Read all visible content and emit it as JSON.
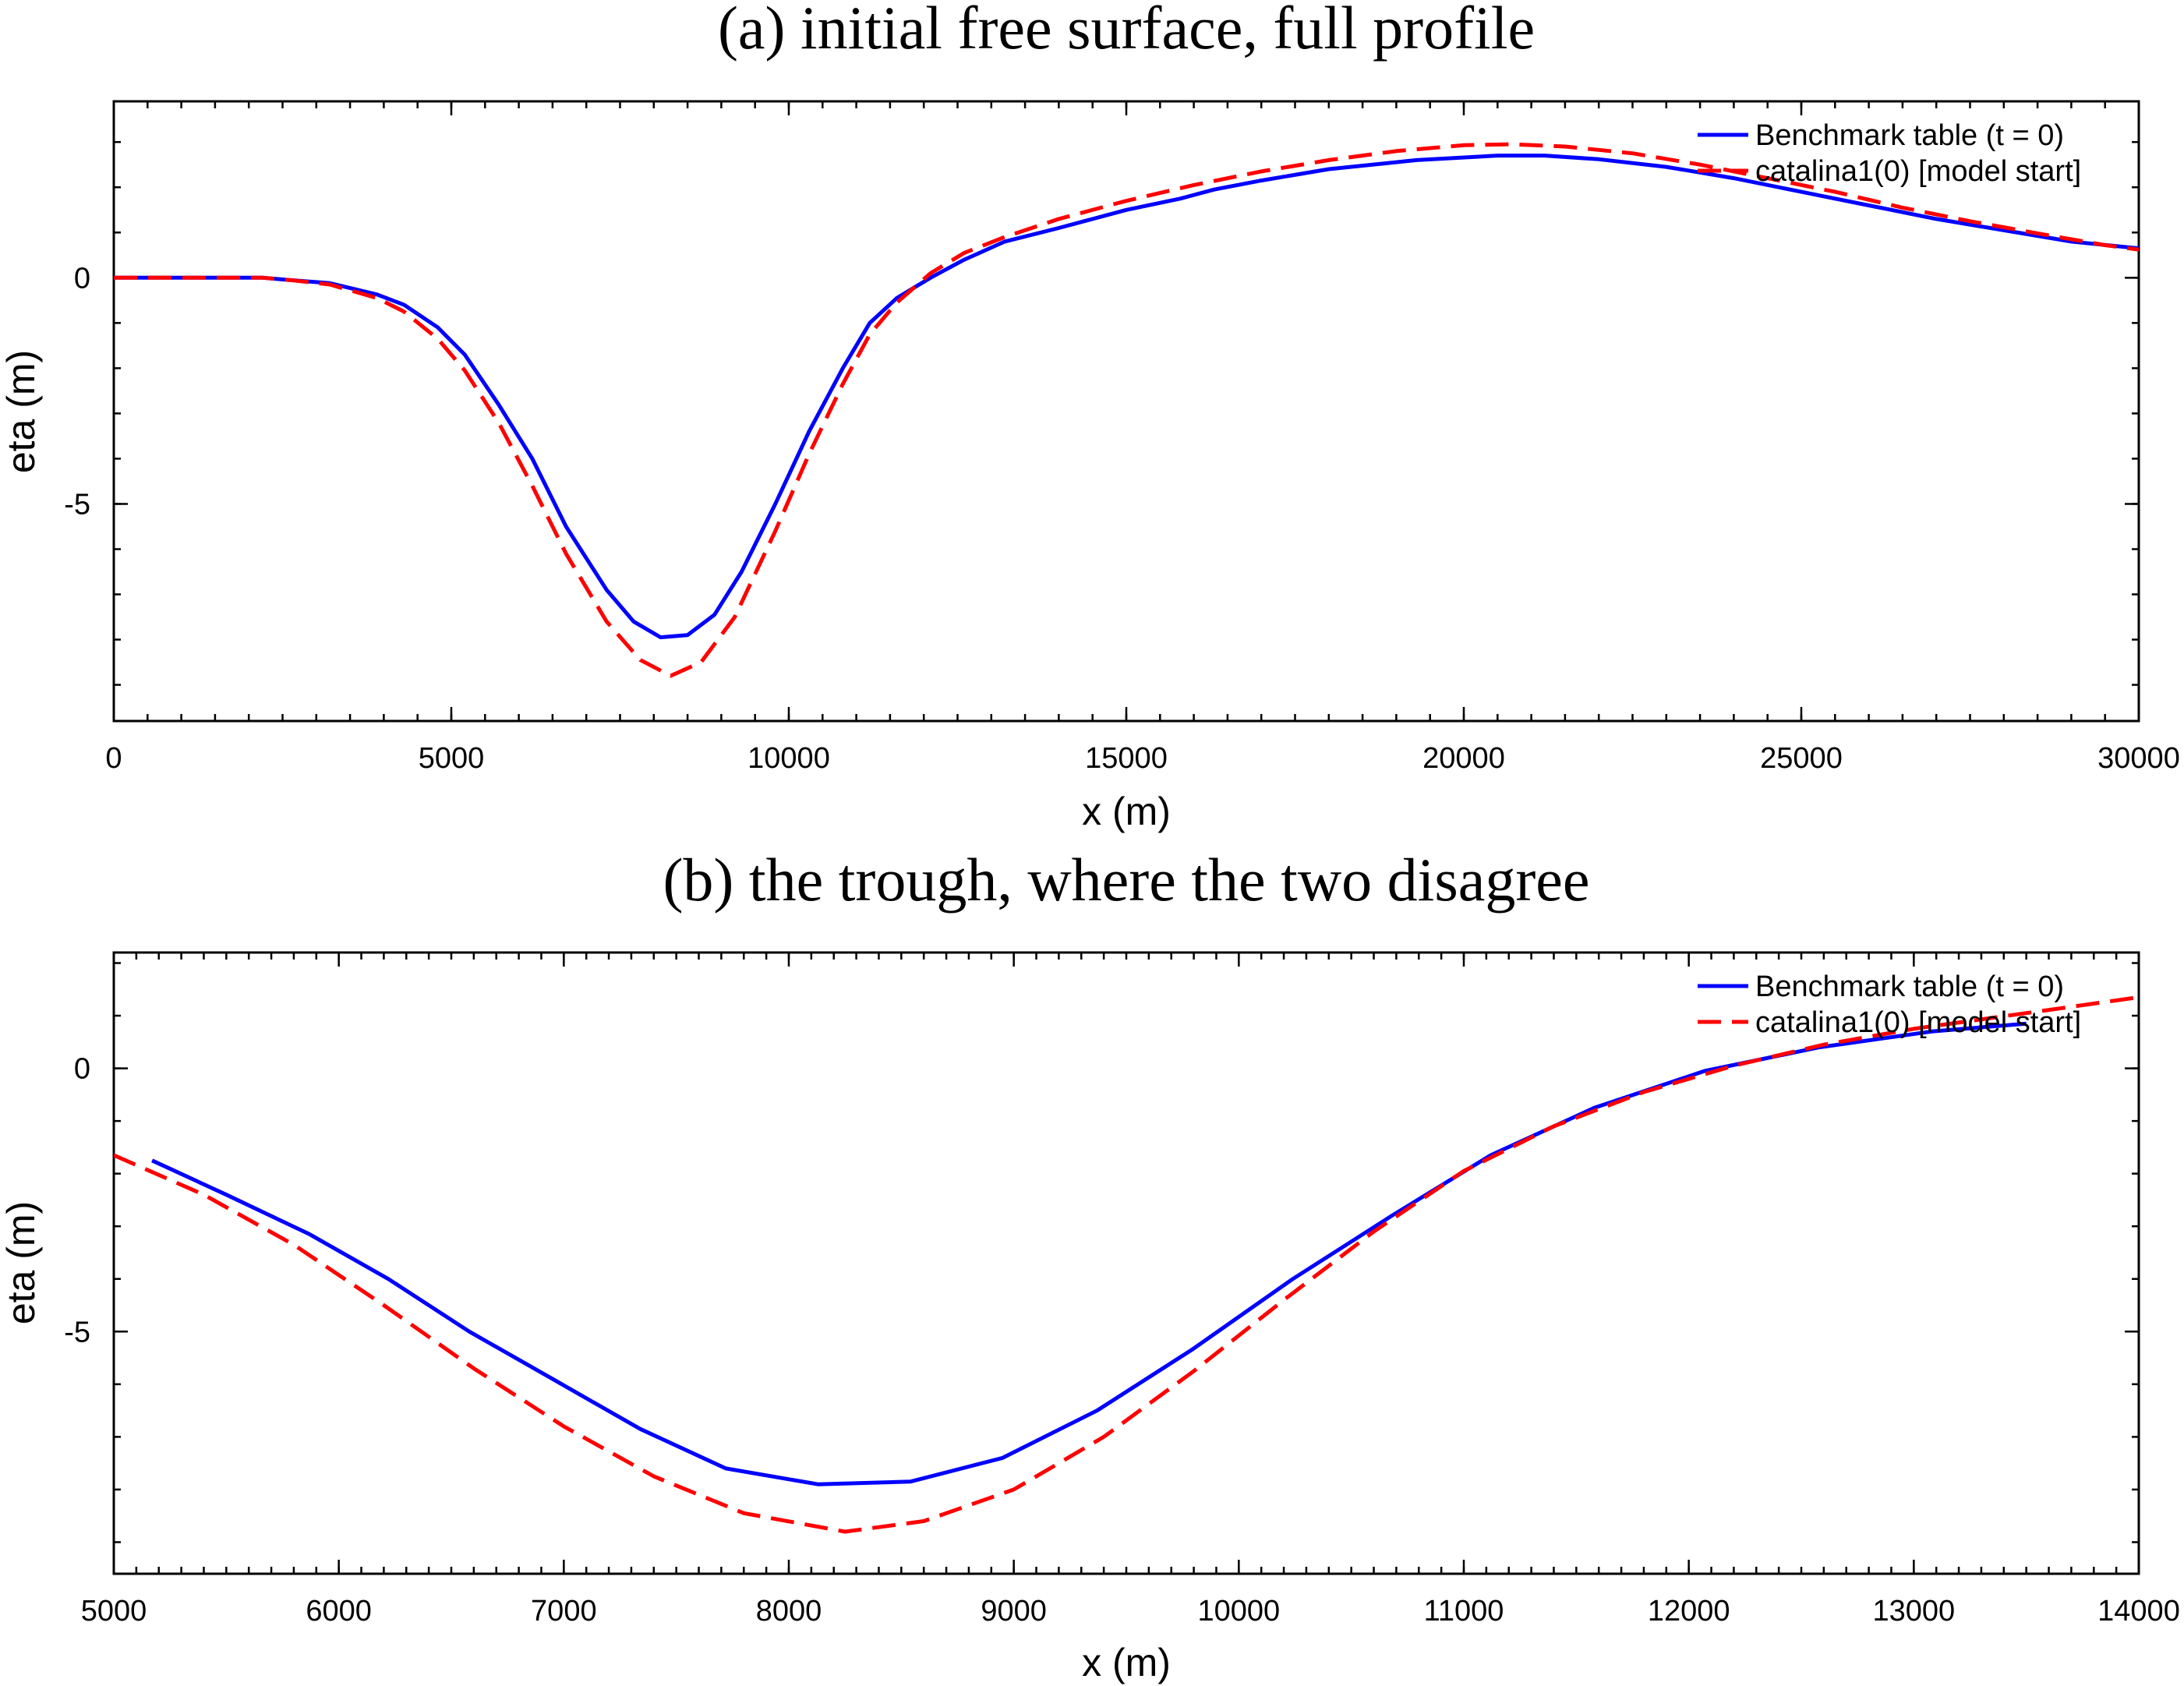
{
  "chart_data": [
    {
      "type": "line",
      "title": "(a) initial free surface, full profile",
      "xlabel": "x (m)",
      "ylabel": "eta (m)",
      "xlim": [
        0,
        30000
      ],
      "ylim": [
        -9.8,
        3.9
      ],
      "x_ticks": [
        0,
        5000,
        10000,
        15000,
        20000,
        25000,
        30000
      ],
      "y_ticks": [
        -5,
        0
      ],
      "grid": false,
      "legend_position": "top-right",
      "series": [
        {
          "name": "Benchmark table (t = 0)",
          "color": "#0000ff",
          "style": "solid",
          "x": [
            0,
            2200,
            2600,
            3200,
            3900,
            4300,
            4800,
            5200,
            5700,
            6200,
            6700,
            7300,
            7700,
            8100,
            8500,
            8900,
            9300,
            9800,
            10300,
            10800,
            11200,
            11600,
            12100,
            12600,
            13200,
            14000,
            15000,
            15800,
            16300,
            17000,
            18000,
            19300,
            20500,
            21200,
            22000,
            23000,
            24000,
            25000,
            26000,
            27000,
            28000,
            29000,
            30000
          ],
          "y": [
            0,
            0,
            -0.05,
            -0.12,
            -0.37,
            -0.6,
            -1.1,
            -1.7,
            -2.8,
            -4.0,
            -5.5,
            -6.9,
            -7.6,
            -7.95,
            -7.9,
            -7.45,
            -6.5,
            -5.0,
            -3.4,
            -2.0,
            -1.0,
            -0.45,
            0.0,
            0.4,
            0.8,
            1.1,
            1.5,
            1.75,
            1.95,
            2.15,
            2.4,
            2.6,
            2.7,
            2.7,
            2.62,
            2.45,
            2.2,
            1.9,
            1.6,
            1.3,
            1.05,
            0.8,
            0.65
          ]
        },
        {
          "name": "catalina1(0)  [model start]",
          "color": "#ff0000",
          "style": "dashed",
          "x": [
            0,
            2200,
            2600,
            3200,
            3900,
            4300,
            4800,
            5200,
            5700,
            6200,
            6700,
            7300,
            7800,
            8250,
            8700,
            9200,
            9800,
            10300,
            10800,
            11200,
            11600,
            12100,
            12600,
            13200,
            14000,
            15000,
            16000,
            17000,
            18000,
            19000,
            20000,
            20700,
            21500,
            22500,
            23500,
            24500,
            25500,
            26500,
            27500,
            28500,
            29500,
            30000
          ],
          "y": [
            0,
            0,
            -0.05,
            -0.15,
            -0.45,
            -0.75,
            -1.35,
            -2.05,
            -3.2,
            -4.6,
            -6.1,
            -7.6,
            -8.45,
            -8.8,
            -8.5,
            -7.5,
            -5.6,
            -3.9,
            -2.35,
            -1.25,
            -0.55,
            0.1,
            0.55,
            0.9,
            1.3,
            1.7,
            2.05,
            2.35,
            2.6,
            2.8,
            2.93,
            2.95,
            2.9,
            2.75,
            2.5,
            2.2,
            1.9,
            1.55,
            1.25,
            0.98,
            0.72,
            0.62
          ]
        }
      ]
    },
    {
      "type": "line",
      "title": "(b) the trough, where the two disagree",
      "xlabel": "x (m)",
      "ylabel": "eta (m)",
      "xlim": [
        5000,
        14000
      ],
      "ylim": [
        -9.6,
        2.2
      ],
      "x_ticks": [
        5000,
        6000,
        7000,
        8000,
        9000,
        10000,
        11000,
        12000,
        13000,
        14000
      ],
      "y_ticks": [
        -5,
        0
      ],
      "grid": false,
      "legend_position": "top-right",
      "series": [
        {
          "name": "Benchmark table (t = 0)",
          "color": "#0000ff",
          "style": "solid",
          "x": [
            5170,
            5500,
            5870,
            6220,
            6580,
            6950,
            7340,
            7720,
            8130,
            8540,
            8950,
            9370,
            9790,
            10240,
            10680,
            11120,
            11580,
            12070,
            12580,
            13080,
            13500
          ],
          "y": [
            -1.75,
            -2.4,
            -3.15,
            -4.0,
            -5.0,
            -5.9,
            -6.85,
            -7.6,
            -7.9,
            -7.85,
            -7.4,
            -6.5,
            -5.35,
            -4.0,
            -2.8,
            -1.65,
            -0.75,
            -0.05,
            0.4,
            0.7,
            0.85
          ]
        },
        {
          "name": "catalina1(0)  [model start]",
          "color": "#ff0000",
          "style": "dashed",
          "x": [
            5000,
            5400,
            5800,
            6200,
            6600,
            7000,
            7400,
            7800,
            8250,
            8600,
            9000,
            9400,
            9800,
            10200,
            10600,
            11000,
            11400,
            11800,
            12200,
            12600,
            13000,
            13500,
            14000
          ],
          "y": [
            -1.65,
            -2.4,
            -3.35,
            -4.5,
            -5.7,
            -6.8,
            -7.75,
            -8.45,
            -8.8,
            -8.6,
            -8.0,
            -7.0,
            -5.75,
            -4.4,
            -3.1,
            -1.95,
            -1.1,
            -0.45,
            0.05,
            0.45,
            0.75,
            1.05,
            1.35
          ]
        }
      ]
    }
  ]
}
